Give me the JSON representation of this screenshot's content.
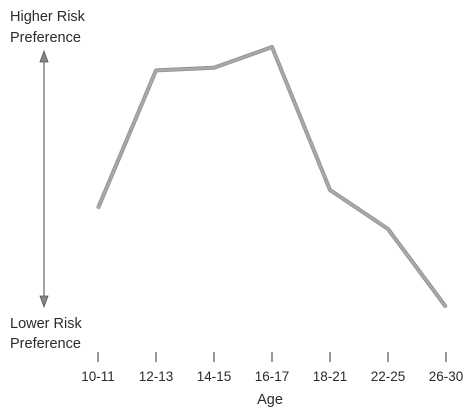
{
  "chart_data": {
    "type": "line",
    "title": "",
    "xlabel": "Age",
    "ylabel_top": [
      "Higher Risk",
      "Preference"
    ],
    "ylabel_bottom": [
      "Lower Risk",
      "Preference"
    ],
    "categories": [
      "10-11",
      "12-13",
      "14-15",
      "16-17",
      "18-21",
      "22-25",
      "26-30"
    ],
    "series": [
      {
        "values": [
          0.38,
          0.91,
          0.92,
          1.0,
          0.45,
          0.3,
          0.0
        ]
      }
    ],
    "ylim": [
      0,
      1
    ],
    "y_ticks": false,
    "grid": false,
    "legend": "none",
    "colors": {
      "line": "#a9a9a9",
      "line_edge": "#8f8f8f",
      "axis": "#555555",
      "text": "#2b2b2b"
    }
  }
}
